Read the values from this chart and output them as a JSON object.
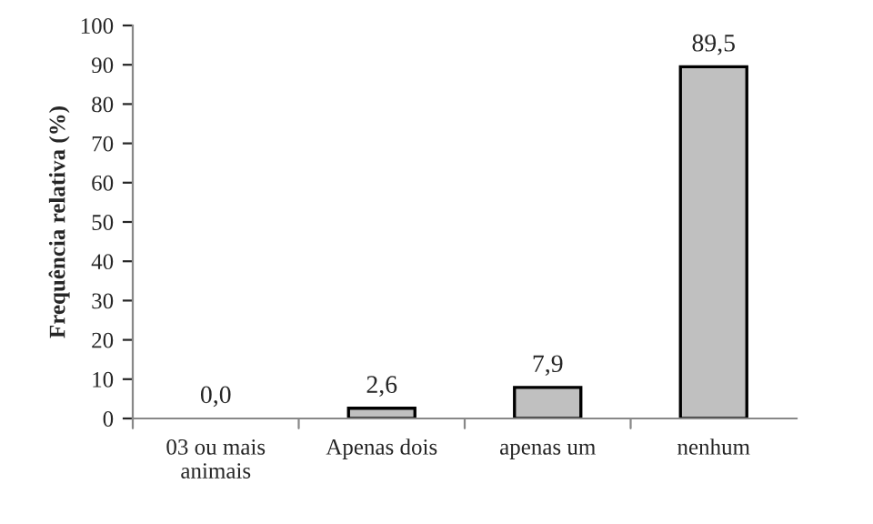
{
  "chart_data": {
    "type": "bar",
    "ylabel": "Frequência relativa (%)",
    "categories": [
      "03 ou mais\nanimais",
      "Apenas dois",
      "apenas um",
      "nenhum"
    ],
    "values": [
      0.0,
      2.6,
      7.9,
      89.5
    ],
    "value_labels": [
      "0,0",
      "2,6",
      "7,9",
      "89,5"
    ],
    "color": "#c0c0c0",
    "ylim": [
      0,
      100
    ],
    "yticks": [
      0,
      10,
      20,
      30,
      40,
      50,
      60,
      70,
      80,
      90,
      100
    ],
    "grid": false,
    "legend": false
  }
}
